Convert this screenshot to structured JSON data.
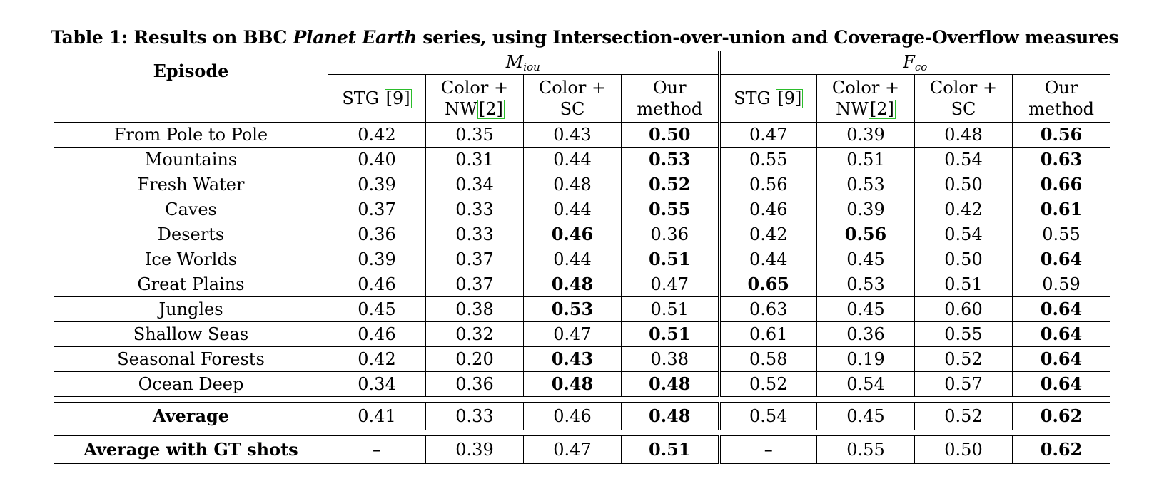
{
  "caption": {
    "prefix": "Table 1: Results on BBC",
    "emph": "Planet Earth",
    "suffix": "series, using Intersection-over-union and Coverage-Overflow measures"
  },
  "header": {
    "episode": "Episode",
    "groups": [
      {
        "base": "M",
        "sub": "iou"
      },
      {
        "base": "F",
        "sub": "co"
      }
    ],
    "methods": [
      {
        "line1": "STG",
        "cite": "9",
        "line2": ""
      },
      {
        "line1": "Color +",
        "cite": "2",
        "line2": "NW"
      },
      {
        "line1": "Color +",
        "cite": "",
        "line2": "SC"
      },
      {
        "line1": "Our",
        "cite": "",
        "line2": "method"
      }
    ]
  },
  "rows": [
    {
      "episode": "From Pole to Pole",
      "values": [
        "0.42",
        "0.35",
        "0.43",
        "0.50",
        "0.47",
        "0.39",
        "0.48",
        "0.56"
      ],
      "bold": [
        3,
        7
      ]
    },
    {
      "episode": "Mountains",
      "values": [
        "0.40",
        "0.31",
        "0.44",
        "0.53",
        "0.55",
        "0.51",
        "0.54",
        "0.63"
      ],
      "bold": [
        3,
        7
      ]
    },
    {
      "episode": "Fresh Water",
      "values": [
        "0.39",
        "0.34",
        "0.48",
        "0.52",
        "0.56",
        "0.53",
        "0.50",
        "0.66"
      ],
      "bold": [
        3,
        7
      ]
    },
    {
      "episode": "Caves",
      "values": [
        "0.37",
        "0.33",
        "0.44",
        "0.55",
        "0.46",
        "0.39",
        "0.42",
        "0.61"
      ],
      "bold": [
        3,
        7
      ]
    },
    {
      "episode": "Deserts",
      "values": [
        "0.36",
        "0.33",
        "0.46",
        "0.36",
        "0.42",
        "0.56",
        "0.54",
        "0.55"
      ],
      "bold": [
        2,
        5
      ]
    },
    {
      "episode": "Ice Worlds",
      "values": [
        "0.39",
        "0.37",
        "0.44",
        "0.51",
        "0.44",
        "0.45",
        "0.50",
        "0.64"
      ],
      "bold": [
        3,
        7
      ]
    },
    {
      "episode": "Great Plains",
      "values": [
        "0.46",
        "0.37",
        "0.48",
        "0.47",
        "0.65",
        "0.53",
        "0.51",
        "0.59"
      ],
      "bold": [
        2,
        4
      ]
    },
    {
      "episode": "Jungles",
      "values": [
        "0.45",
        "0.38",
        "0.53",
        "0.51",
        "0.63",
        "0.45",
        "0.60",
        "0.64"
      ],
      "bold": [
        2,
        7
      ]
    },
    {
      "episode": "Shallow Seas",
      "values": [
        "0.46",
        "0.32",
        "0.47",
        "0.51",
        "0.61",
        "0.36",
        "0.55",
        "0.64"
      ],
      "bold": [
        3,
        7
      ]
    },
    {
      "episode": "Seasonal Forests",
      "values": [
        "0.42",
        "0.20",
        "0.43",
        "0.38",
        "0.58",
        "0.19",
        "0.52",
        "0.64"
      ],
      "bold": [
        2,
        7
      ]
    },
    {
      "episode": "Ocean Deep",
      "values": [
        "0.34",
        "0.36",
        "0.48",
        "0.48",
        "0.52",
        "0.54",
        "0.57",
        "0.64"
      ],
      "bold": [
        2,
        3,
        7
      ]
    }
  ],
  "averages": [
    {
      "label": "Average",
      "values": [
        "0.41",
        "0.33",
        "0.46",
        "0.48",
        "0.54",
        "0.45",
        "0.52",
        "0.62"
      ],
      "bold": [
        3,
        7
      ]
    },
    {
      "label": "Average with GT shots",
      "values": [
        "–",
        "0.39",
        "0.47",
        "0.51",
        "–",
        "0.55",
        "0.50",
        "0.62"
      ],
      "bold": [
        3,
        7
      ]
    }
  ]
}
